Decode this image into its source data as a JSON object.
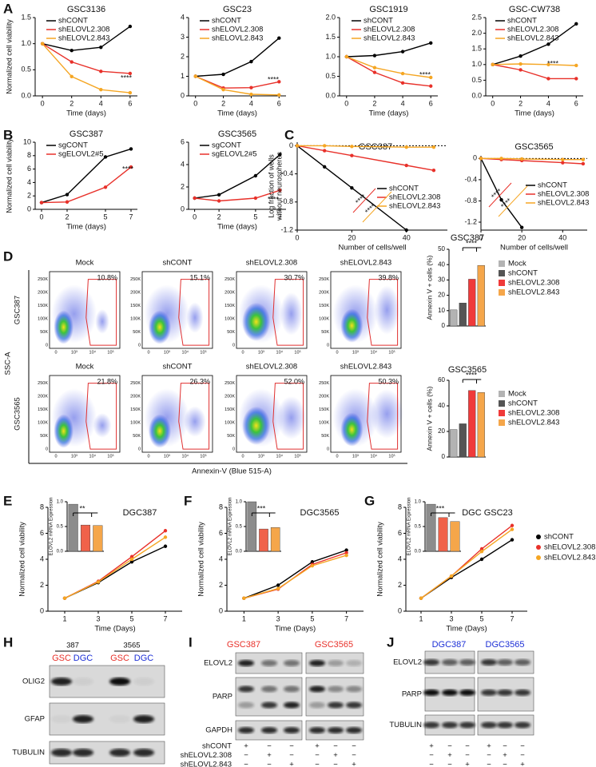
{
  "panel_labels": [
    "A",
    "B",
    "C",
    "D",
    "E",
    "F",
    "G",
    "H",
    "I",
    "J"
  ],
  "chart_data": [
    {
      "type": "line",
      "title": "GSC3136",
      "x": [
        0,
        2,
        4,
        6
      ],
      "xlim": [
        -0.5,
        6.5
      ],
      "xticks": [
        0,
        2,
        4,
        6
      ],
      "ylim": [
        0,
        1.5
      ],
      "yticks": [
        {
          "value": 0,
          "label": "0.0"
        },
        {
          "value": 0.5,
          "label": "0.5"
        },
        {
          "value": 1,
          "label": "1.0"
        },
        {
          "value": 1.5,
          "label": "1.5"
        }
      ],
      "xlabel": "Time (days)",
      "ylabel": "Normalized cell viability",
      "legend": true,
      "annotations": [
        "****"
      ],
      "series": [
        {
          "name": "shCONT",
          "color": "#000000",
          "values": [
            1,
            0.87,
            0.93,
            1.33
          ]
        },
        {
          "name": "shELOVL2.308",
          "color": "#e8312a",
          "values": [
            1,
            0.65,
            0.47,
            0.43
          ]
        },
        {
          "name": "shELOVL2.843",
          "color": "#f5a623",
          "values": [
            1,
            0.37,
            0.12,
            0.06
          ]
        }
      ]
    },
    {
      "type": "line",
      "title": "GSC23",
      "x": [
        0,
        2,
        4,
        6
      ],
      "xlim": [
        -0.5,
        6.5
      ],
      "xticks": [
        0,
        2,
        4,
        6
      ],
      "ylim": [
        0,
        4
      ],
      "yticks": [
        0,
        1,
        2,
        3,
        4
      ],
      "xlabel": "Time (days)",
      "legend": true,
      "annotations": [
        "****"
      ],
      "series": [
        {
          "name": "shCONT",
          "color": "#000000",
          "values": [
            1,
            1.1,
            1.75,
            2.95
          ]
        },
        {
          "name": "shELOVL2.308",
          "color": "#e8312a",
          "values": [
            1,
            0.4,
            0.42,
            0.72
          ]
        },
        {
          "name": "shELOVL2.843",
          "color": "#f5a623",
          "values": [
            1,
            0.32,
            0.08,
            0.05
          ]
        }
      ]
    },
    {
      "type": "line",
      "title": "GSC1919",
      "x": [
        0,
        2,
        4,
        6
      ],
      "xlim": [
        -0.5,
        6.5
      ],
      "xticks": [
        0,
        2,
        4,
        6
      ],
      "ylim": [
        0,
        2
      ],
      "yticks": [
        {
          "value": 0,
          "label": "0.0"
        },
        {
          "value": 0.5,
          "label": "0.5"
        },
        {
          "value": 1,
          "label": "1.0"
        },
        {
          "value": 1.5,
          "label": "1.5"
        },
        {
          "value": 2,
          "label": "2.0"
        }
      ],
      "xlabel": "Time (days)",
      "legend": true,
      "annotations": [
        "****"
      ],
      "series": [
        {
          "name": "shCONT",
          "color": "#000000",
          "values": [
            1,
            1.03,
            1.13,
            1.35
          ]
        },
        {
          "name": "shELOVL2.308",
          "color": "#e8312a",
          "values": [
            1,
            0.6,
            0.33,
            0.25
          ]
        },
        {
          "name": "shELOVL2.843",
          "color": "#f5a623",
          "values": [
            1,
            0.72,
            0.57,
            0.47
          ]
        }
      ]
    },
    {
      "type": "line",
      "title": "GSC-CW738",
      "x": [
        0,
        2,
        4,
        6
      ],
      "xlim": [
        -0.5,
        6.5
      ],
      "xticks": [
        0,
        2,
        4,
        6
      ],
      "ylim": [
        0,
        2.5
      ],
      "yticks": [
        {
          "value": 0,
          "label": "0.0"
        },
        {
          "value": 0.5,
          "label": "0.5"
        },
        {
          "value": 1,
          "label": "1.0"
        },
        {
          "value": 1.5,
          "label": "1.5"
        },
        {
          "value": 2,
          "label": "2.0"
        },
        {
          "value": 2.5,
          "label": "2.5"
        }
      ],
      "xlabel": "Time (days)",
      "legend": true,
      "annotations": [
        "****"
      ],
      "series": [
        {
          "name": "shCONT",
          "color": "#000000",
          "values": [
            1,
            1.27,
            1.65,
            2.3
          ]
        },
        {
          "name": "shELOVL2.308",
          "color": "#e8312a",
          "values": [
            1,
            0.83,
            0.55,
            0.55
          ]
        },
        {
          "name": "shELOVL2.843",
          "color": "#f5a623",
          "values": [
            1,
            1.02,
            1.0,
            0.97
          ]
        }
      ]
    },
    {
      "type": "line",
      "title": "GSC387",
      "x": [
        0,
        2,
        5,
        7
      ],
      "xlim": [
        -0.5,
        7.5
      ],
      "xticks": [
        0,
        2,
        5,
        7
      ],
      "ylim": [
        0,
        10
      ],
      "yticks": [
        0,
        2,
        4,
        6,
        8,
        10
      ],
      "xlabel": "Time (days)",
      "ylabel": "Normalized cell viability",
      "legend": true,
      "annotations": [
        "****"
      ],
      "series": [
        {
          "name": "sgCONT",
          "color": "#000000",
          "values": [
            1,
            2.2,
            7.8,
            9.0
          ]
        },
        {
          "name": "sgELOVL2#5",
          "color": "#e8312a",
          "values": [
            1,
            1.1,
            3.3,
            6.3
          ]
        }
      ]
    },
    {
      "type": "line",
      "title": "GSC3565",
      "x": [
        0,
        2,
        5,
        7
      ],
      "xlim": [
        -0.5,
        7.5
      ],
      "xticks": [
        0,
        2,
        5,
        7
      ],
      "ylim": [
        0,
        6
      ],
      "yticks": [
        0,
        2,
        4,
        6
      ],
      "xlabel": "Time (days)",
      "legend": true,
      "annotations": [
        "****"
      ],
      "series": [
        {
          "name": "sgCONT",
          "color": "#000000",
          "values": [
            1,
            1.3,
            3.0,
            4.9
          ]
        },
        {
          "name": "sgELOVL2#5",
          "color": "#e8312a",
          "values": [
            1,
            0.75,
            1.0,
            1.7
          ]
        }
      ]
    },
    {
      "type": "line",
      "title": "GSC387",
      "x": [
        0,
        10,
        20,
        40,
        50
      ],
      "xlim": [
        0,
        55
      ],
      "xticks": [
        0,
        20,
        40
      ],
      "ylim": [
        -1.2,
        0.05
      ],
      "yticks": [
        -1.2,
        -0.8,
        -0.4,
        0
      ],
      "xlabel": "Number of cells/well",
      "ylabel": [
        "Log fraction of wells",
        "without neurospheres"
      ],
      "zero_line": true,
      "legend": true,
      "annotations": [
        "****",
        "****"
      ],
      "series": [
        {
          "name": "shCONT",
          "color": "#000000",
          "values": [
            0,
            -0.3,
            -0.6,
            -1.2,
            null
          ]
        },
        {
          "name": "shELOVL2.308",
          "color": "#e8312a",
          "values": [
            0,
            -0.07,
            -0.14,
            -0.28,
            -0.35
          ]
        },
        {
          "name": "shELOVL2.843",
          "color": "#f5a623",
          "values": [
            0,
            0,
            -0.01,
            -0.02,
            -0.02
          ]
        }
      ]
    },
    {
      "type": "line",
      "title": "GSC3565",
      "x": [
        0,
        10,
        20,
        40,
        50
      ],
      "xlim": [
        0,
        52
      ],
      "xticks": [
        0,
        20,
        40
      ],
      "ylim": [
        -1.35,
        0.05
      ],
      "yticks": [
        -1.2,
        -0.8,
        -0.4,
        0
      ],
      "xlabel": "Number of cells/well",
      "zero_line": true,
      "legend": true,
      "annotations": [
        "****",
        "****"
      ],
      "series": [
        {
          "name": "shCONT",
          "color": "#000000",
          "values": [
            0,
            -0.78,
            -1.3,
            null,
            null
          ]
        },
        {
          "name": "shELOVL2.308",
          "color": "#e8312a",
          "values": [
            0,
            -0.02,
            -0.04,
            -0.08,
            -0.1
          ]
        },
        {
          "name": "shELOVL2.843",
          "color": "#f5a623",
          "values": [
            0,
            0,
            -0.01,
            -0.02,
            -0.02
          ]
        }
      ]
    },
    {
      "type": "bar",
      "title": "GSC387",
      "categories": [
        "Mock",
        "shCONT",
        "shELOVL2.308",
        "shELOVL2.843"
      ],
      "values": [
        10.5,
        15,
        30.5,
        39.5
      ],
      "colors": [
        "#b3b3b3",
        "#555555",
        "#f03a3a",
        "#f5a64a"
      ],
      "ylim": [
        0,
        50
      ],
      "yticks": [
        0,
        10,
        20,
        30,
        40,
        50
      ],
      "ylabel": "Annexin V + cells (%)",
      "annotations": [
        "****"
      ]
    },
    {
      "type": "bar",
      "title": "GSC3565",
      "categories": [
        "Mock",
        "shCONT",
        "shELOVL2.308",
        "shELOVL2.843"
      ],
      "values": [
        21.5,
        26,
        52,
        50.5
      ],
      "colors": [
        "#b3b3b3",
        "#555555",
        "#f03a3a",
        "#f5a64a"
      ],
      "ylim": [
        0,
        60
      ],
      "yticks": [
        0,
        20,
        40,
        60
      ],
      "ylabel": "Annexin V + cells (%)",
      "annotations": [
        "****"
      ]
    },
    {
      "type": "line",
      "title": "DGC387",
      "x": [
        1,
        3,
        5,
        7
      ],
      "xlim": [
        0,
        8
      ],
      "xticks": [
        1,
        3,
        5,
        7
      ],
      "ylim": [
        0,
        8
      ],
      "yticks": [
        0,
        2,
        4,
        6,
        8
      ],
      "xlabel": "Time (Days)",
      "ylabel": "Normalized cell viability",
      "series": [
        {
          "color": "#000000",
          "values": [
            1,
            2.2,
            3.8,
            5.0
          ]
        },
        {
          "color": "#e8312a",
          "values": [
            1,
            2.3,
            4.2,
            6.2
          ]
        },
        {
          "color": "#f5a623",
          "values": [
            1,
            2.25,
            4.0,
            5.7
          ]
        }
      ]
    },
    {
      "type": "line",
      "title": "DGC3565",
      "x": [
        1,
        3,
        5,
        7
      ],
      "xlim": [
        0,
        8
      ],
      "xticks": [
        1,
        3,
        5,
        7
      ],
      "ylim": [
        0,
        8
      ],
      "yticks": [
        0,
        2,
        4,
        6,
        8
      ],
      "xlabel": "Time (Days)",
      "ylabel": "Normalized cell viability",
      "series": [
        {
          "color": "#000000",
          "values": [
            1,
            2.0,
            3.8,
            4.7
          ]
        },
        {
          "color": "#e8312a",
          "values": [
            1,
            1.7,
            3.6,
            4.5
          ]
        },
        {
          "color": "#f5a623",
          "values": [
            1,
            1.75,
            3.5,
            4.3
          ]
        }
      ]
    },
    {
      "type": "line",
      "title": "DGC GSC23",
      "x": [
        1,
        3,
        5,
        7
      ],
      "xlim": [
        0,
        8
      ],
      "xticks": [
        1,
        3,
        5,
        7
      ],
      "ylim": [
        0,
        8
      ],
      "yticks": [
        0,
        2,
        4,
        6,
        8
      ],
      "xlabel": "Time (Days)",
      "ylabel": "Normalized cell viability",
      "legend": true,
      "series": [
        {
          "name": "shCONT",
          "color": "#000000",
          "values": [
            1,
            2.6,
            4.0,
            5.5
          ]
        },
        {
          "name": "shELOVL2.308",
          "color": "#e8312a",
          "values": [
            1,
            2.7,
            4.8,
            6.6
          ]
        },
        {
          "name": "shELOVL2.843",
          "color": "#f5a623",
          "values": [
            1,
            2.7,
            4.6,
            6.3
          ]
        }
      ]
    },
    {
      "type": "bar",
      "values": [
        0.95,
        0.53,
        0.52
      ],
      "colors": [
        "#8c8c8c",
        "#f0624a",
        "#f5a64a"
      ],
      "ylim": [
        0,
        1
      ],
      "yticks": [
        {
          "value": 0,
          "label": "0.0"
        },
        {
          "value": 0.5,
          "label": "0.5"
        },
        {
          "value": 1,
          "label": "1.0"
        }
      ],
      "ylabel": "ELOVL2 mRNA Expression",
      "annotations": [
        "**"
      ]
    },
    {
      "type": "bar",
      "values": [
        1.0,
        0.45,
        0.48
      ],
      "colors": [
        "#8c8c8c",
        "#f0624a",
        "#f5a64a"
      ],
      "ylim": [
        0,
        1
      ],
      "yticks": [
        {
          "value": 0,
          "label": "0.0"
        },
        {
          "value": 0.5,
          "label": "0.5"
        },
        {
          "value": 1,
          "label": "1.0"
        }
      ],
      "ylabel": "ELOVL2 mRNA Expression",
      "annotations": [
        "***"
      ]
    },
    {
      "type": "bar",
      "values": [
        0.95,
        0.68,
        0.6
      ],
      "colors": [
        "#8c8c8c",
        "#f0624a",
        "#f5a64a"
      ],
      "ylim": [
        0,
        1
      ],
      "yticks": [
        {
          "value": 0,
          "label": "0.0"
        },
        {
          "value": 0.5,
          "label": "0.5"
        },
        {
          "value": 1,
          "label": "1.0"
        }
      ],
      "ylabel": "ELOVL2 mRNA Expression",
      "annotations": [
        "***"
      ]
    }
  ],
  "flow": {
    "x_label": "Annexin-V (Blue 515-A)",
    "y_label": "SSC-A",
    "yticks": [
      "250K",
      "200K",
      "150K",
      "100K",
      "50K",
      "0"
    ],
    "xticks": [
      "0",
      "10³",
      "10⁴",
      "10⁵"
    ],
    "rows": [
      {
        "name": "GSC387",
        "panels": [
          {
            "label": "Mock",
            "gate": "10.8%"
          },
          {
            "label": "shCONT",
            "gate": "15.1%"
          },
          {
            "label": "shELOVL2.308",
            "gate": "30.7%"
          },
          {
            "label": "shELOVL2.843",
            "gate": "39.8%"
          }
        ]
      },
      {
        "name": "GSC3565",
        "panels": [
          {
            "label": "Mock",
            "gate": "21.8%"
          },
          {
            "label": "shCONT",
            "gate": "26.3%"
          },
          {
            "label": "shELOVL2.308",
            "gate": "52.0%"
          },
          {
            "label": "shELOVL2.843",
            "gate": "50.3%"
          }
        ]
      }
    ]
  },
  "blots": {
    "H": {
      "groups": [
        "387",
        "3565"
      ],
      "lanes": [
        "GSC",
        "DGC",
        "GSC",
        "DGC"
      ],
      "lane_colors": [
        "#e8312a",
        "#1c2fd6",
        "#e8312a",
        "#1c2fd6"
      ],
      "rows": [
        "OLIG2",
        "GFAP",
        "TUBULIN"
      ]
    },
    "I": {
      "groups": [
        "GSC387",
        "GSC3565"
      ],
      "group_color": "#e8312a",
      "rows": [
        "ELOVL2",
        "PARP",
        "GAPDH"
      ],
      "conditions": [
        {
          "name": "shCONT",
          "signs": [
            "+",
            "−",
            "−",
            "+",
            "−",
            "−"
          ]
        },
        {
          "name": "shELOVL2.308",
          "signs": [
            "−",
            "+",
            "−",
            "−",
            "+",
            "−"
          ]
        },
        {
          "name": "shELOVL2.843",
          "signs": [
            "−",
            "−",
            "+",
            "−",
            "−",
            "+"
          ]
        }
      ]
    },
    "J": {
      "groups": [
        "DGC387",
        "DGC3565"
      ],
      "group_color": "#1c2fd6",
      "rows": [
        "ELOVL2",
        "PARP",
        "TUBULIN"
      ],
      "signs": [
        [
          "+",
          "−",
          "−",
          "+",
          "−",
          "−"
        ],
        [
          "−",
          "+",
          "−",
          "−",
          "+",
          "−"
        ],
        [
          "−",
          "−",
          "+",
          "−",
          "−",
          "+"
        ]
      ]
    }
  }
}
